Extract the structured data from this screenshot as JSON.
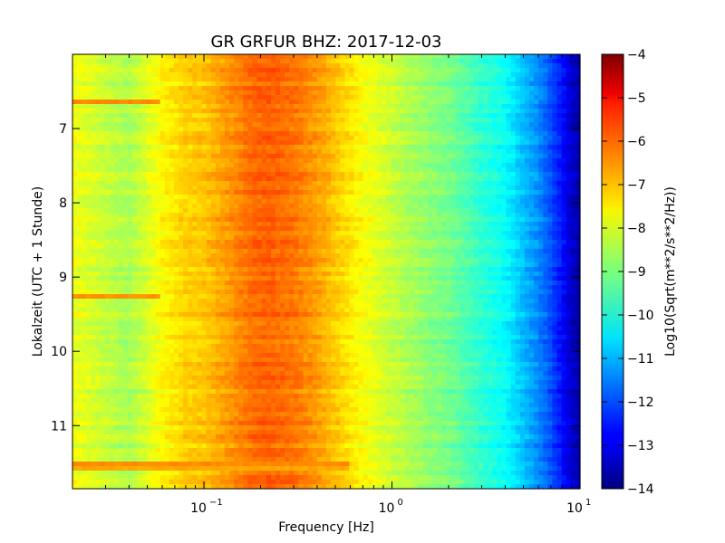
{
  "chart_data": {
    "type": "heatmap",
    "title": "GR GRFUR BHZ: 2017-12-03",
    "xlabel": "Frequency [Hz]",
    "ylabel": "Lokalzeit (UTC + 1 Stunde)",
    "x_scale": "log",
    "xlim": [
      0.02,
      10
    ],
    "x_ticks": [
      {
        "value": 0.1,
        "base": "10",
        "exp": "−1"
      },
      {
        "value": 1,
        "base": "10",
        "exp": "0"
      },
      {
        "value": 10,
        "base": "10",
        "exp": "1"
      }
    ],
    "ylim": [
      6.0,
      11.85
    ],
    "y_inverted": true,
    "y_ticks": [
      7,
      8,
      9,
      10,
      11
    ],
    "y_tick_labels": [
      "7",
      "8",
      "9",
      "10",
      "11"
    ],
    "colorbar": {
      "label": "Log10(Sqrt(m**2/s**2/Hz))",
      "colormap": "jet",
      "range": [
        -14,
        -4
      ],
      "ticks": [
        -4,
        -5,
        -6,
        -7,
        -8,
        -9,
        -10,
        -11,
        -12,
        -13,
        -14
      ],
      "tick_labels": [
        "−4",
        "−5",
        "−6",
        "−7",
        "−8",
        "−9",
        "−10",
        "−11",
        "−12",
        "−13",
        "−14"
      ]
    },
    "spectrum_profile": {
      "frequency_hz": [
        0.02,
        0.04,
        0.06,
        0.08,
        0.1,
        0.14,
        0.18,
        0.22,
        0.3,
        0.4,
        0.5,
        0.7,
        1.0,
        1.5,
        2.0,
        3.0,
        4.0,
        5.0,
        6.0,
        7.0,
        8.0,
        9.0,
        10.0
      ],
      "log10_psd": [
        -7.9,
        -8.6,
        -7.7,
        -7.3,
        -7.2,
        -6.7,
        -6.3,
        -6.2,
        -6.4,
        -6.8,
        -7.2,
        -7.8,
        -8.3,
        -8.8,
        -9.1,
        -9.8,
        -10.2,
        -10.9,
        -11.4,
        -12.0,
        -12.6,
        -13.3,
        -13.6
      ]
    },
    "event_rows": [
      {
        "time": 6.62,
        "max_frequency_hz": 0.058,
        "log10_psd": -6.6
      },
      {
        "time": 9.24,
        "max_frequency_hz": 0.058,
        "log10_psd": -6.7
      },
      {
        "time": 11.52,
        "max_frequency_hz": 0.6,
        "log10_psd": -6.6
      },
      {
        "time": 11.6,
        "max_frequency_hz": 0.6,
        "log10_psd": -6.9
      }
    ]
  }
}
